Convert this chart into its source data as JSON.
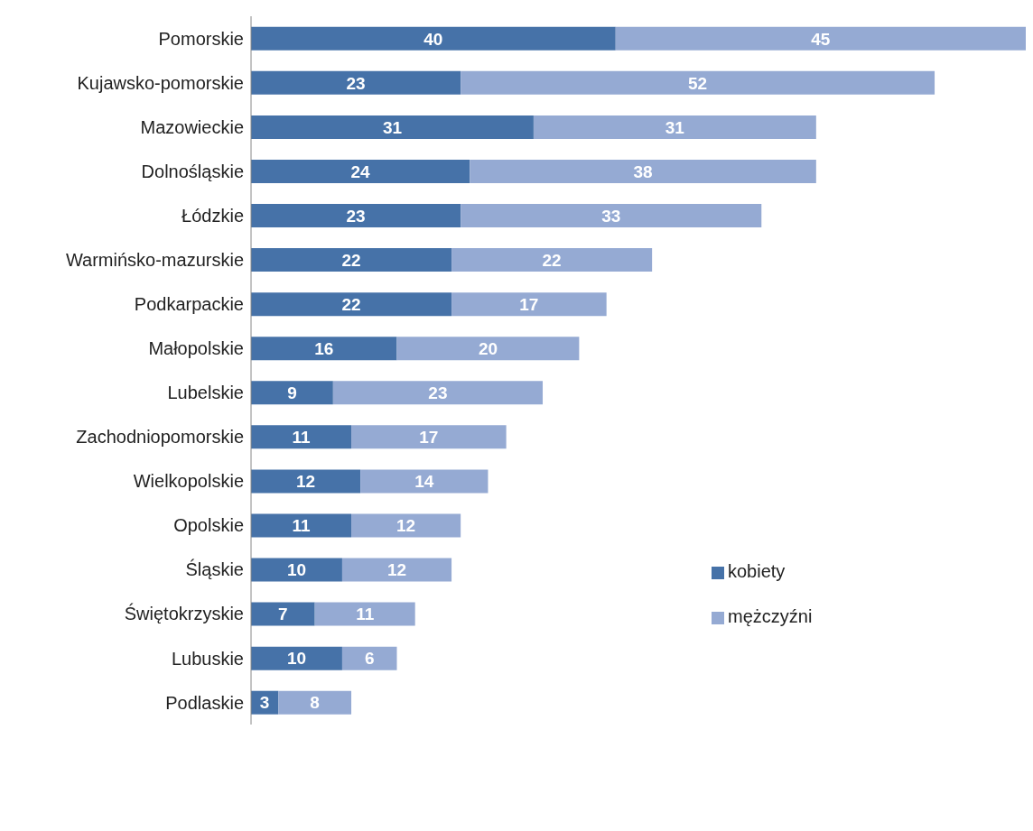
{
  "chart_data": {
    "type": "bar",
    "orientation": "horizontal",
    "stacked": true,
    "data_labels": true,
    "legend": "right",
    "grid": false,
    "tick_labels": "y",
    "xlim": [
      0,
      85
    ],
    "categories": [
      "Pomorskie",
      "Kujawsko-pomorskie",
      "Mazowieckie",
      "Dolnośląskie",
      "Łódzkie",
      "Warmińsko-mazurskie",
      "Podkarpackie",
      "Małopolskie",
      "Lubelskie",
      "Zachodniopomorskie",
      "Wielkopolskie",
      "Opolskie",
      "Śląskie",
      "Świętokrzyskie",
      "Lubuskie",
      "Podlaskie"
    ],
    "series": [
      {
        "name": "kobiety",
        "color": "#4672a8",
        "values": [
          40,
          23,
          31,
          24,
          23,
          22,
          22,
          16,
          9,
          11,
          12,
          11,
          10,
          7,
          10,
          3
        ]
      },
      {
        "name": "mężczyźni",
        "color": "#95aad3",
        "values": [
          45,
          52,
          31,
          38,
          33,
          22,
          17,
          20,
          23,
          17,
          14,
          12,
          12,
          11,
          6,
          8
        ]
      }
    ]
  }
}
